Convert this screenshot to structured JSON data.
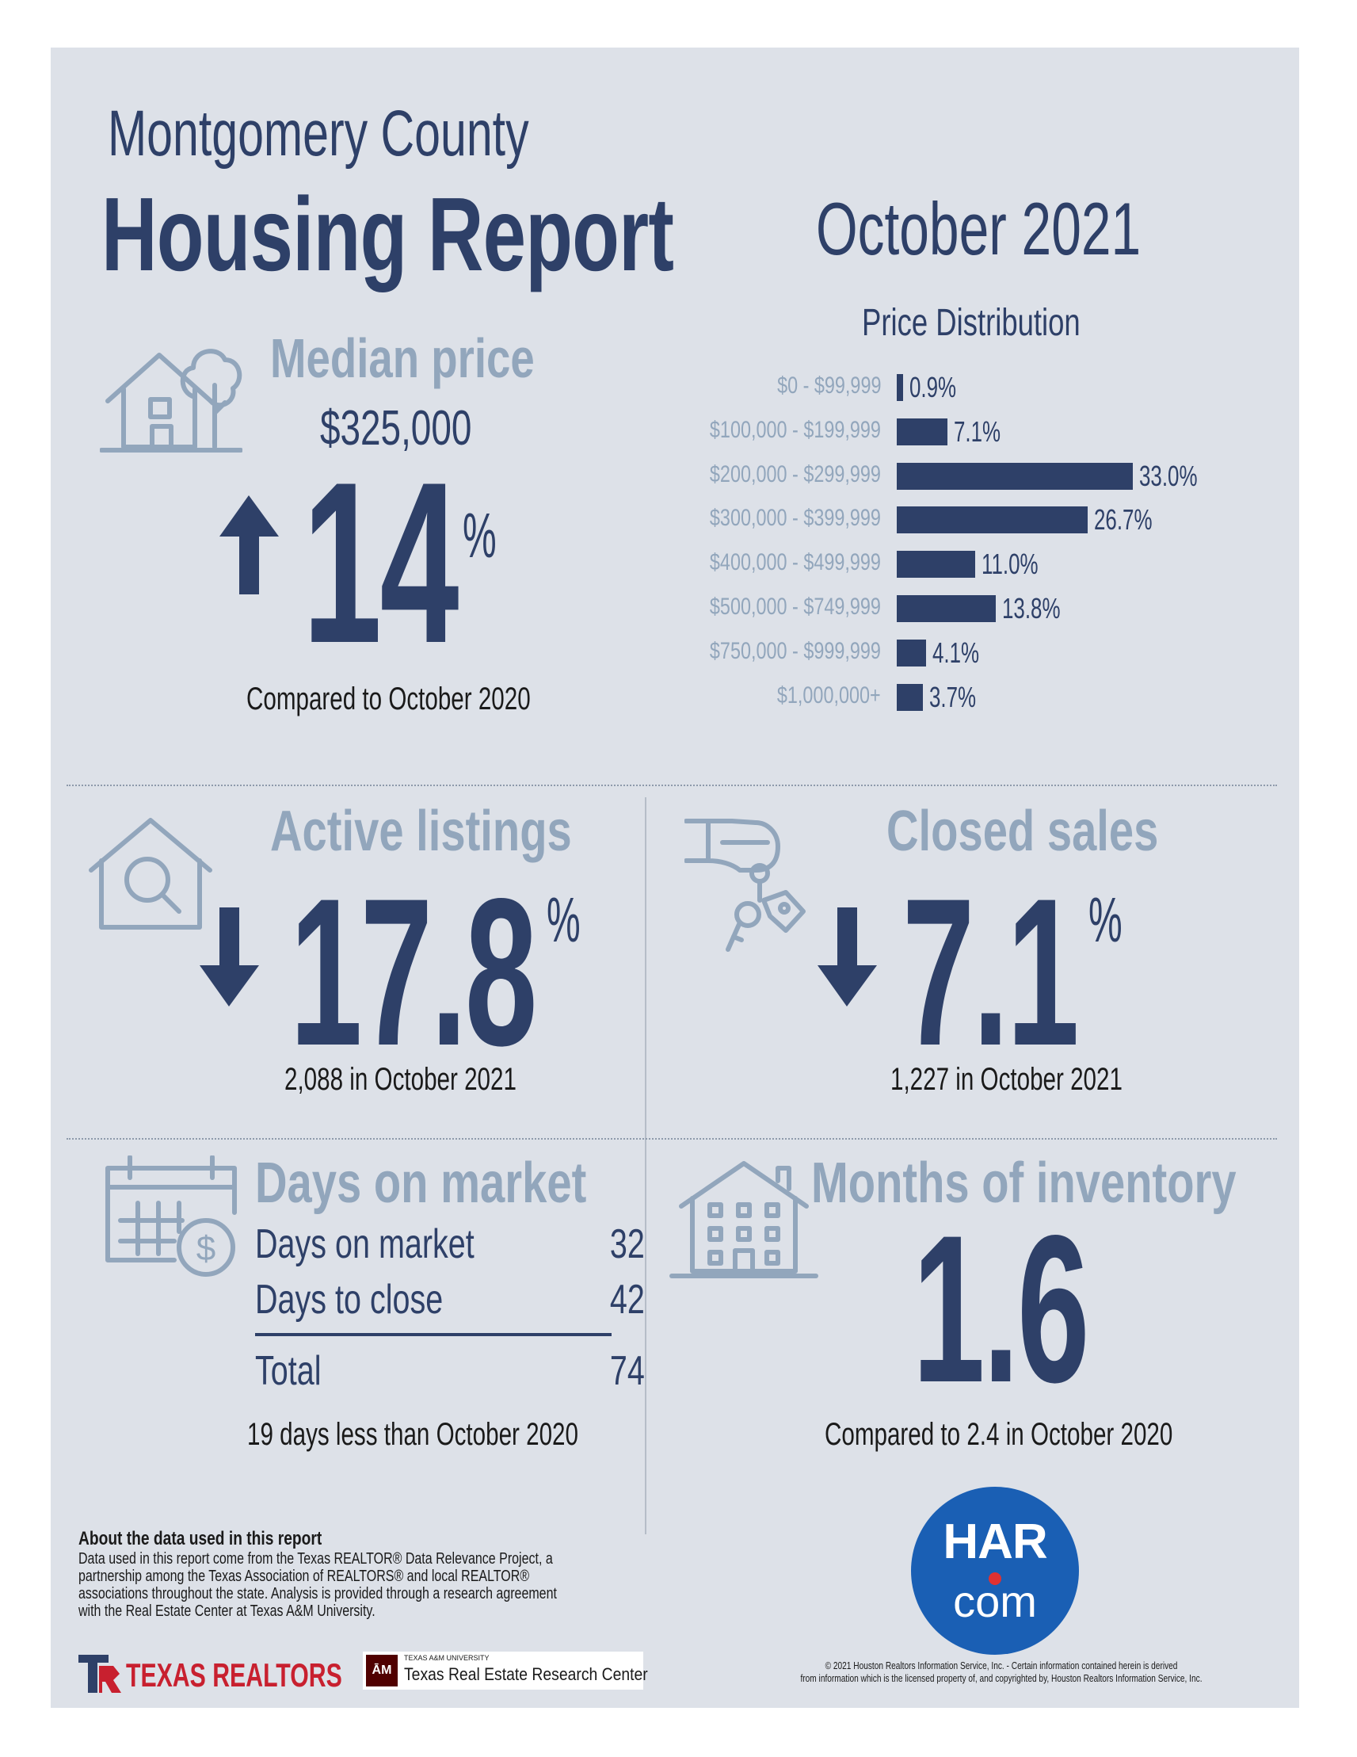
{
  "header": {
    "county": "Montgomery County",
    "report_title": "Housing Report",
    "month": "October 2021"
  },
  "median_price": {
    "title": "Median price",
    "value": "$325,000",
    "change": "14",
    "percent_sign": "%",
    "direction": "up",
    "caption": "Compared to October 2020"
  },
  "price_distribution": {
    "title": "Price Distribution"
  },
  "chart_data": {
    "type": "bar",
    "orientation": "horizontal",
    "title": "Price Distribution",
    "categories": [
      "$0 - $99,999",
      "$100,000 - $199,999",
      "$200,000 - $299,999",
      "$300,000 - $399,999",
      "$400,000 - $499,999",
      "$500,000 - $749,999",
      "$750,000 - $999,999",
      "$1,000,000+"
    ],
    "values": [
      0.9,
      7.1,
      33.0,
      26.7,
      11.0,
      13.8,
      4.1,
      3.7
    ],
    "value_labels": [
      "0.9%",
      "7.1%",
      "33.0%",
      "26.7%",
      "11.0%",
      "13.8%",
      "4.1%",
      "3.7%"
    ],
    "bar_color": "#2e4068"
  },
  "active_listings": {
    "title": "Active listings",
    "change": "17.8",
    "percent_sign": "%",
    "direction": "down",
    "caption": "2,088 in October 2021"
  },
  "closed_sales": {
    "title": "Closed sales",
    "change": "7.1",
    "percent_sign": "%",
    "direction": "down",
    "caption": "1,227 in October 2021"
  },
  "days_on_market": {
    "title": "Days on market",
    "rows": [
      {
        "label": "Days on market",
        "value": "32"
      },
      {
        "label": "Days to close",
        "value": "42"
      }
    ],
    "total_label": "Total",
    "total_value": "74",
    "caption": "19 days less than October 2020"
  },
  "months_inventory": {
    "title": "Months of inventory",
    "value": "1.6",
    "caption": "Compared to 2.4 in October 2020"
  },
  "about": {
    "title": "About the data used in this report",
    "text": "Data used in this report come from the Texas REALTOR® Data Relevance Project, a\npartnership among the Texas Association of REALTORS® and local REALTOR®\nassociations throughout the state. Analysis is provided through a research agreement\nwith the Real Estate Center at Texas A&M University."
  },
  "logos": {
    "texas_realtors": "TEXAS REALTORS",
    "tamu_small": "TEXAS A&M UNIVERSITY",
    "tamu_center": "Texas Real Estate Research Center",
    "har_top": "HAR",
    "har_bottom": "com"
  },
  "copyright": "© 2021 Houston Realtors Information Service, Inc. - Certain information contained herein is derived\nfrom information which is the licensed property of, and copyrighted by, Houston Realtors Information Service, Inc.",
  "colors": {
    "navy": "#2e4068",
    "pale_blue": "#92a6bc",
    "background": "#dde1e8",
    "har_blue": "#1a5fb4",
    "har_red": "#e03131",
    "texas_red": "#c8202f"
  }
}
